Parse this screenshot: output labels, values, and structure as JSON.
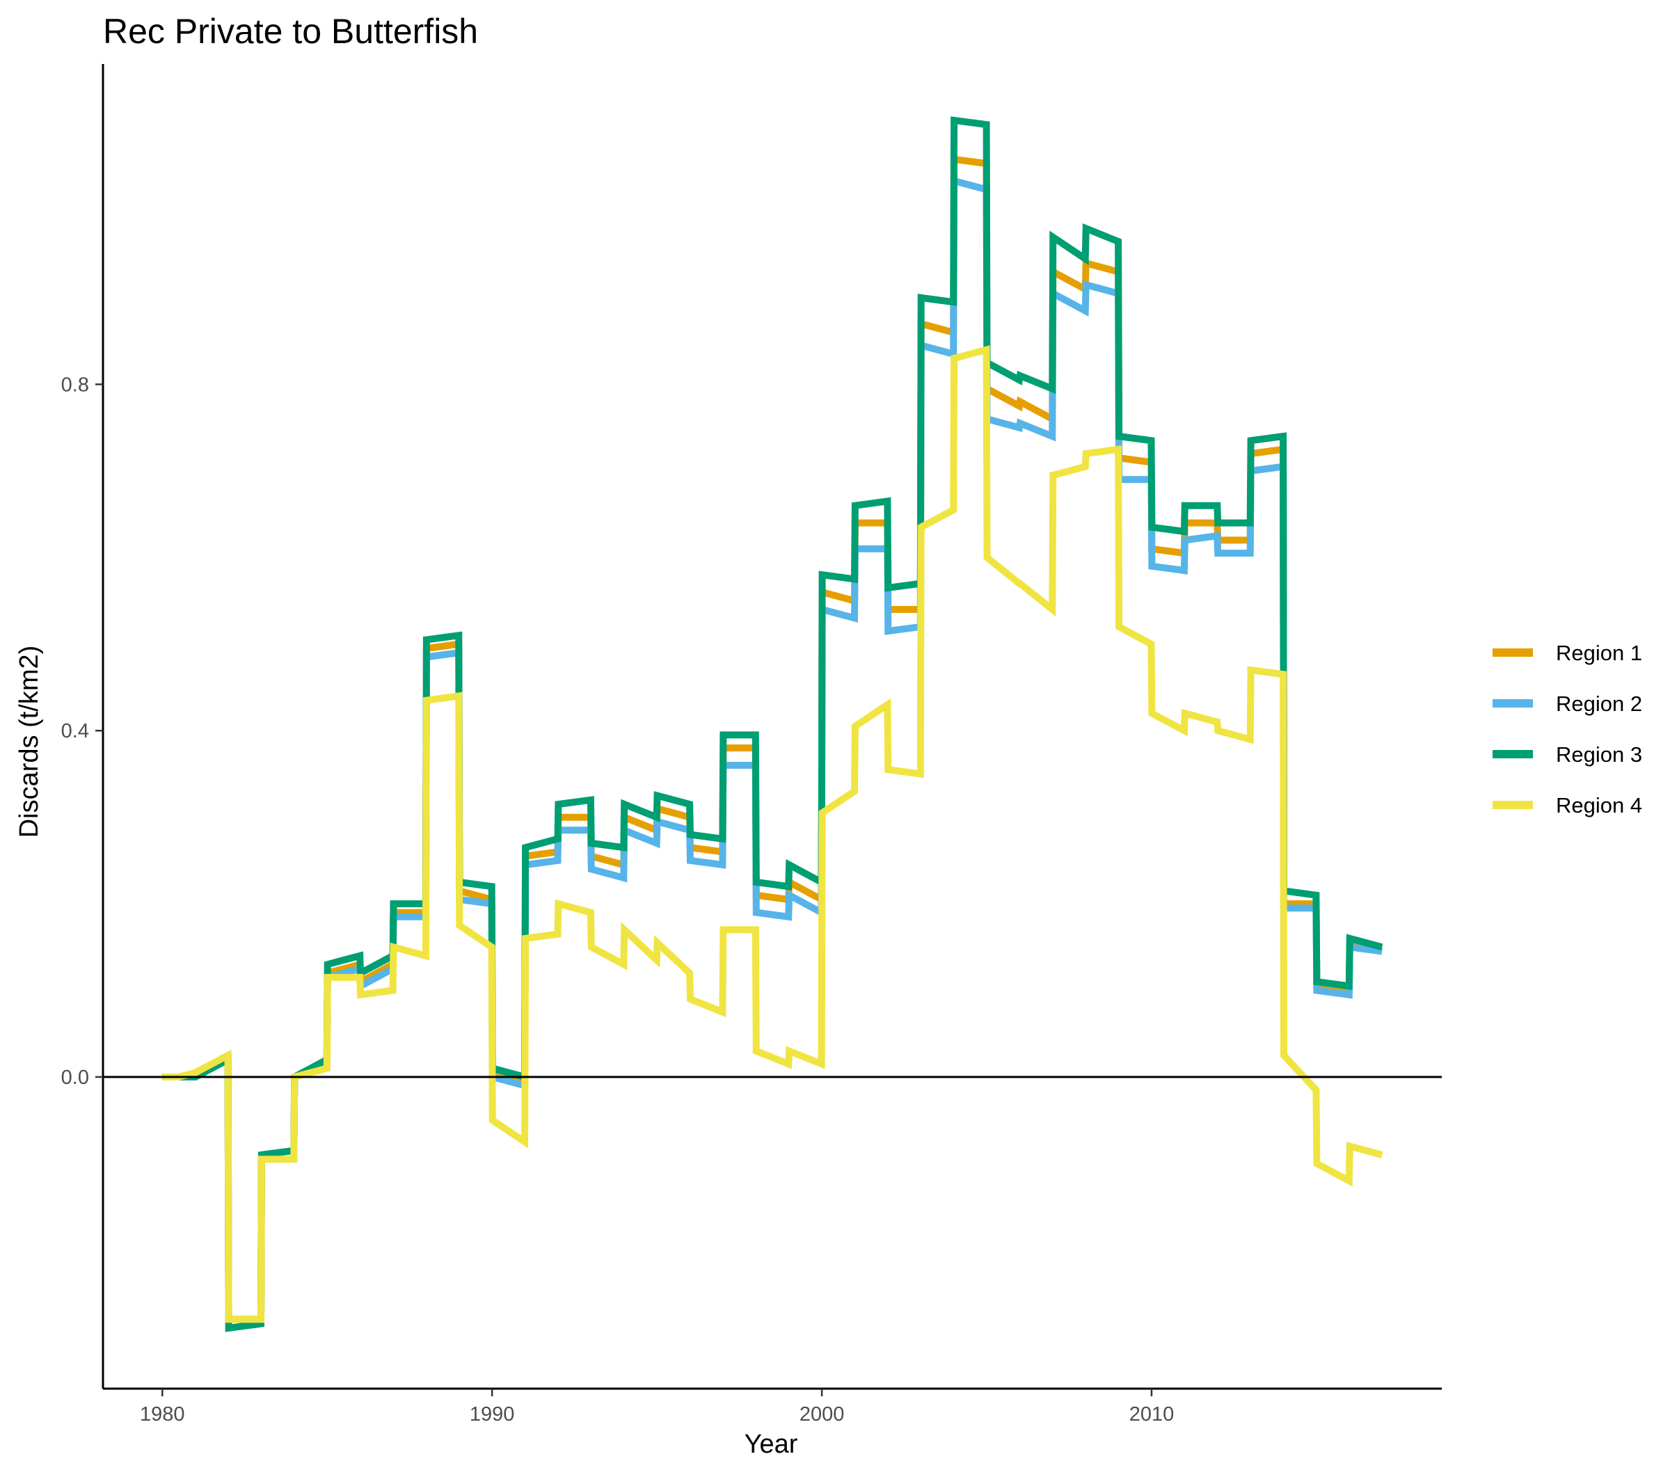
{
  "chart_data": {
    "type": "line",
    "title": "Rec Private to Butterfish",
    "xlabel": "Year",
    "ylabel": "Discards (t/km2)",
    "xlim": [
      1978.2,
      2018.8
    ],
    "ylim": [
      -0.36,
      1.17
    ],
    "x_ticks": [
      1980,
      1990,
      2000,
      2010
    ],
    "x_tick_labels": [
      "1980",
      "1990",
      "2000",
      "2010"
    ],
    "y_ticks": [
      0.0,
      0.4,
      0.8
    ],
    "y_tick_labels": [
      "0.0",
      "0.4",
      "0.8"
    ],
    "hline": 0,
    "grid": false,
    "legend_position": "right",
    "x": [
      1980,
      1980.5,
      1981,
      1981.99,
      1982.01,
      1982.99,
      1983.01,
      1983.99,
      1984.01,
      1984.99,
      1985.01,
      1985.99,
      1986.01,
      1986.99,
      1987.01,
      1987.99,
      1988.01,
      1988.99,
      1989.01,
      1989.99,
      1990.01,
      1990.99,
      1991.01,
      1991.99,
      1992.01,
      1992.99,
      1993.01,
      1993.99,
      1994.01,
      1994.99,
      1995.01,
      1995.99,
      1996.01,
      1996.99,
      1997.01,
      1997.99,
      1998.01,
      1998.99,
      1999.01,
      1999.99,
      2000.01,
      2000.99,
      2001.01,
      2001.99,
      2002.01,
      2002.99,
      2003.01,
      2003.99,
      2004.01,
      2004.99,
      2005.01,
      2005.99,
      2006.01,
      2006.99,
      2007.01,
      2007.99,
      2008.01,
      2008.99,
      2009.01,
      2009.99,
      2010.01,
      2010.99,
      2011.01,
      2011.99,
      2012.01,
      2012.99,
      2013.01,
      2013.99,
      2014.01,
      2014.99,
      2015.01,
      2015.99,
      2016.01,
      2016.99
    ],
    "series": [
      {
        "name": "Region 1",
        "color": "#E69F00",
        "values": [
          0.0,
          0.0,
          0.0,
          0.02,
          -0.28,
          -0.28,
          -0.09,
          -0.085,
          0.0,
          0.02,
          0.12,
          0.13,
          0.11,
          0.13,
          0.19,
          0.19,
          0.495,
          0.5,
          0.215,
          0.205,
          0.005,
          -0.005,
          0.255,
          0.26,
          0.3,
          0.3,
          0.255,
          0.245,
          0.3,
          0.285,
          0.31,
          0.3,
          0.265,
          0.26,
          0.38,
          0.38,
          0.21,
          0.205,
          0.225,
          0.205,
          0.56,
          0.55,
          0.64,
          0.64,
          0.54,
          0.54,
          0.87,
          0.86,
          1.06,
          1.055,
          0.795,
          0.775,
          0.78,
          0.76,
          0.93,
          0.91,
          0.94,
          0.93,
          0.715,
          0.71,
          0.61,
          0.605,
          0.64,
          0.64,
          0.62,
          0.62,
          0.72,
          0.725,
          0.2,
          0.2,
          0.105,
          0.1,
          0.155,
          0.15
        ]
      },
      {
        "name": "Region 2",
        "color": "#56B4E9",
        "values": [
          0.0,
          0.0,
          0.0,
          0.02,
          -0.28,
          -0.28,
          -0.09,
          -0.085,
          0.0,
          0.015,
          0.115,
          0.125,
          0.105,
          0.125,
          0.185,
          0.185,
          0.485,
          0.49,
          0.205,
          0.2,
          0.0,
          -0.01,
          0.245,
          0.25,
          0.285,
          0.285,
          0.24,
          0.23,
          0.285,
          0.27,
          0.295,
          0.285,
          0.25,
          0.245,
          0.36,
          0.36,
          0.19,
          0.185,
          0.21,
          0.19,
          0.54,
          0.53,
          0.61,
          0.61,
          0.515,
          0.52,
          0.845,
          0.835,
          1.035,
          1.025,
          0.76,
          0.75,
          0.755,
          0.74,
          0.905,
          0.885,
          0.915,
          0.905,
          0.69,
          0.69,
          0.59,
          0.585,
          0.62,
          0.625,
          0.605,
          0.605,
          0.7,
          0.705,
          0.195,
          0.195,
          0.1,
          0.095,
          0.15,
          0.145
        ]
      },
      {
        "name": "Region 3",
        "color": "#009E73",
        "values": [
          0.0,
          0.0,
          0.0,
          0.02,
          -0.29,
          -0.285,
          -0.09,
          -0.085,
          0.0,
          0.02,
          0.13,
          0.14,
          0.12,
          0.14,
          0.2,
          0.2,
          0.505,
          0.51,
          0.225,
          0.22,
          0.01,
          0.0,
          0.265,
          0.275,
          0.315,
          0.32,
          0.27,
          0.265,
          0.315,
          0.3,
          0.325,
          0.315,
          0.28,
          0.275,
          0.395,
          0.395,
          0.225,
          0.22,
          0.245,
          0.225,
          0.58,
          0.575,
          0.66,
          0.665,
          0.565,
          0.57,
          0.9,
          0.895,
          1.105,
          1.1,
          0.825,
          0.805,
          0.81,
          0.795,
          0.97,
          0.945,
          0.98,
          0.965,
          0.74,
          0.735,
          0.635,
          0.63,
          0.66,
          0.66,
          0.64,
          0.64,
          0.735,
          0.74,
          0.215,
          0.21,
          0.11,
          0.105,
          0.16,
          0.15
        ]
      },
      {
        "name": "Region 4",
        "color": "#F0E442",
        "values": [
          0.0,
          0.0,
          0.005,
          0.025,
          -0.28,
          -0.28,
          -0.095,
          -0.095,
          0.0,
          0.01,
          0.115,
          0.115,
          0.095,
          0.1,
          0.15,
          0.14,
          0.435,
          0.44,
          0.175,
          0.15,
          -0.05,
          -0.075,
          0.16,
          0.165,
          0.2,
          0.19,
          0.15,
          0.13,
          0.17,
          0.135,
          0.155,
          0.12,
          0.09,
          0.075,
          0.17,
          0.17,
          0.03,
          0.015,
          0.03,
          0.015,
          0.305,
          0.33,
          0.405,
          0.43,
          0.355,
          0.35,
          0.635,
          0.655,
          0.83,
          0.84,
          0.6,
          0.57,
          0.57,
          0.54,
          0.695,
          0.705,
          0.72,
          0.725,
          0.52,
          0.5,
          0.42,
          0.4,
          0.42,
          0.41,
          0.4,
          0.39,
          0.47,
          0.465,
          0.025,
          -0.015,
          -0.1,
          -0.12,
          -0.08,
          -0.09
        ]
      }
    ]
  }
}
